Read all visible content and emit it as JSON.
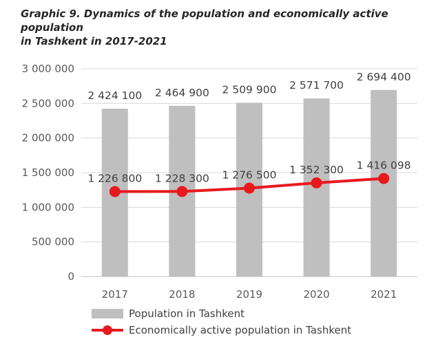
{
  "title": {
    "line1": "Graphic 9. Dynamics of the population and economically active population",
    "line2": "in Tashkent in 2017-2021"
  },
  "colors": {
    "bar": "#bfbfbf",
    "line": "#e8191e",
    "grid": "#d9d9d9"
  },
  "chart_data": {
    "type": "bar",
    "title": "Graphic 9. Dynamics of the population and economically active population in Tashkent in 2017-2021",
    "categories": [
      "2017",
      "2018",
      "2019",
      "2020",
      "2021"
    ],
    "ylim": [
      0,
      3000000
    ],
    "yticks": [
      0,
      500000,
      1000000,
      1500000,
      2000000,
      2500000,
      3000000
    ],
    "ytick_labels": [
      "0",
      "500 000",
      "1 000 000",
      "1 500 000",
      "2 000 000",
      "2 500 000",
      "3 000 000"
    ],
    "grid": true,
    "legend_position": "bottom",
    "series": [
      {
        "name": "Population in Tashkent",
        "type": "bar",
        "values": [
          2424100,
          2464900,
          2509900,
          2571700,
          2694400
        ],
        "labels": [
          "2 424 100",
          "2 464 900",
          "2 509 900",
          "2 571 700",
          "2 694 400"
        ]
      },
      {
        "name": "Economically active population in Tashkent",
        "type": "line",
        "values": [
          1226800,
          1228300,
          1276500,
          1352300,
          1416098
        ],
        "labels": [
          "1 226 800",
          "1 228 300",
          "1 276 500",
          "1 352 300",
          "1 416 098"
        ]
      }
    ]
  }
}
